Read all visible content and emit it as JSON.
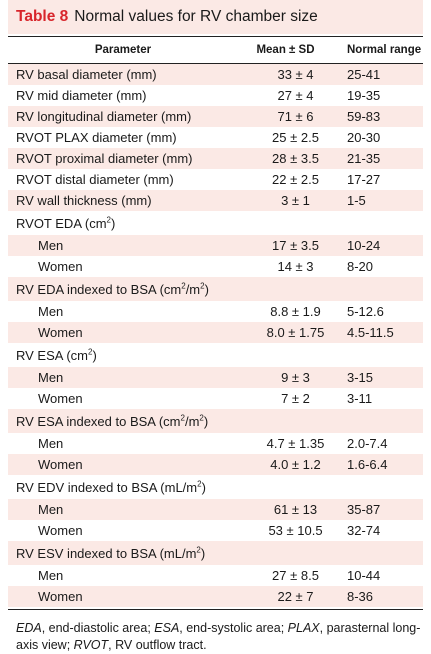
{
  "title": {
    "label": "Table 8",
    "text": "Normal values for RV chamber size"
  },
  "columns": [
    "Parameter",
    "Mean ± SD",
    "Normal range"
  ],
  "rows": [
    {
      "param": "RV basal diameter (mm)",
      "mean": "33 ± 4",
      "range": "25-41",
      "shade": true,
      "sub": false
    },
    {
      "param": "RV mid diameter (mm)",
      "mean": "27 ± 4",
      "range": "19-35",
      "shade": false,
      "sub": false
    },
    {
      "param": "RV longitudinal diameter (mm)",
      "mean": "71 ± 6",
      "range": "59-83",
      "shade": true,
      "sub": false
    },
    {
      "param": "RVOT PLAX diameter (mm)",
      "mean": "25 ± 2.5",
      "range": "20-30",
      "shade": false,
      "sub": false
    },
    {
      "param": "RVOT proximal diameter (mm)",
      "mean": "28 ± 3.5",
      "range": "21-35",
      "shade": true,
      "sub": false
    },
    {
      "param": "RVOT distal diameter (mm)",
      "mean": "22 ± 2.5",
      "range": "17-27",
      "shade": false,
      "sub": false
    },
    {
      "param": "RV wall thickness (mm)",
      "mean": "3 ± 1",
      "range": "1-5",
      "shade": true,
      "sub": false
    },
    {
      "param": "RVOT EDA (cm",
      "sup": "2",
      "tail": ")",
      "mean": "",
      "range": "",
      "shade": false,
      "sub": false,
      "tall": true
    },
    {
      "param": "Men",
      "mean": "17 ± 3.5",
      "range": "10-24",
      "shade": true,
      "sub": true
    },
    {
      "param": "Women",
      "mean": "14 ± 3",
      "range": "8-20",
      "shade": false,
      "sub": true
    },
    {
      "param": "RV EDA indexed to BSA (cm",
      "sup": "2",
      "mid": "/m",
      "sup2": "2",
      "tail": ")",
      "mean": "",
      "range": "",
      "shade": true,
      "sub": false,
      "tall": true
    },
    {
      "param": "Men",
      "mean": "8.8 ± 1.9",
      "range": "5-12.6",
      "shade": false,
      "sub": true
    },
    {
      "param": "Women",
      "mean": "8.0 ± 1.75",
      "range": "4.5-11.5",
      "shade": true,
      "sub": true
    },
    {
      "param": "RV ESA (cm",
      "sup": "2",
      "tail": ")",
      "mean": "",
      "range": "",
      "shade": false,
      "sub": false,
      "tall": true
    },
    {
      "param": "Men",
      "mean": "9 ± 3",
      "range": "3-15",
      "shade": true,
      "sub": true
    },
    {
      "param": "Women",
      "mean": "7 ± 2",
      "range": "3-11",
      "shade": false,
      "sub": true
    },
    {
      "param": "RV ESA indexed to BSA (cm",
      "sup": "2",
      "mid": "/m",
      "sup2": "2",
      "tail": ")",
      "mean": "",
      "range": "",
      "shade": true,
      "sub": false,
      "tall": true
    },
    {
      "param": "Men",
      "mean": "4.7 ± 1.35",
      "range": "2.0-7.4",
      "shade": false,
      "sub": true
    },
    {
      "param": "Women",
      "mean": "4.0 ± 1.2",
      "range": "1.6-6.4",
      "shade": true,
      "sub": true
    },
    {
      "param": "RV EDV indexed to BSA (mL/m",
      "sup": "2",
      "tail": ")",
      "mean": "",
      "range": "",
      "shade": false,
      "sub": false,
      "tall": true
    },
    {
      "param": "Men",
      "mean": "61 ± 13",
      "range": "35-87",
      "shade": true,
      "sub": true
    },
    {
      "param": "Women",
      "mean": "53 ± 10.5",
      "range": "32-74",
      "shade": false,
      "sub": true
    },
    {
      "param": "RV ESV indexed to BSA (mL/m",
      "sup": "2",
      "tail": ")",
      "mean": "",
      "range": "",
      "shade": true,
      "sub": false,
      "tall": true
    },
    {
      "param": "Men",
      "mean": "27 ± 8.5",
      "range": "10-44",
      "shade": false,
      "sub": true
    },
    {
      "param": "Women",
      "mean": "22 ± 7",
      "range": "8-36",
      "shade": true,
      "sub": true
    }
  ],
  "footnote": [
    {
      "abbr": "EDA",
      "def": ", end-diastolic area; "
    },
    {
      "abbr": "ESA",
      "def": ", end-systolic area; "
    },
    {
      "abbr": "PLAX",
      "def": ", parasternal long-axis view; "
    },
    {
      "abbr": "RVOT",
      "def": ", RV outflow tract."
    }
  ]
}
